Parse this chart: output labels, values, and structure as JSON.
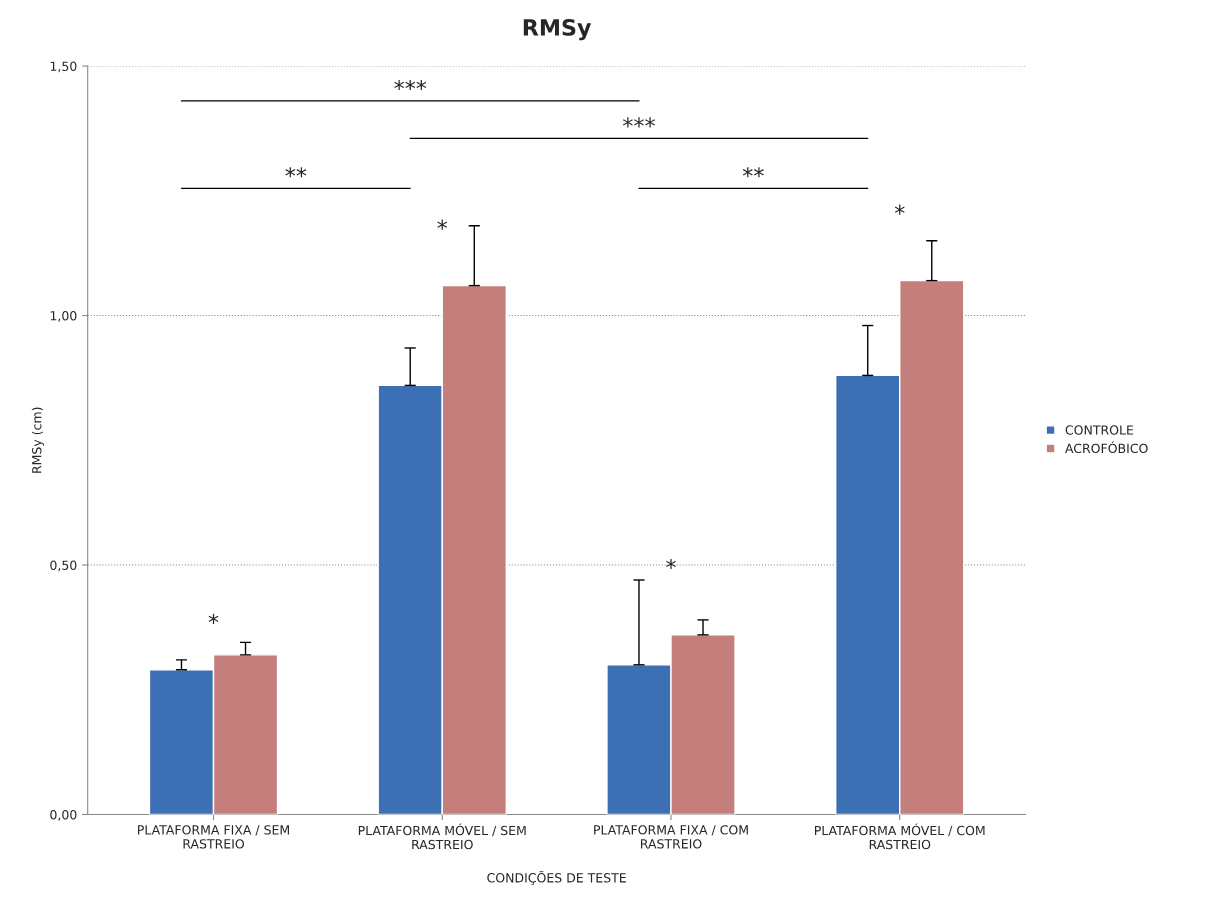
{
  "chart_data": {
    "type": "bar",
    "title": "RMSy",
    "xlabel": "CONDIÇÕES DE TESTE",
    "ylabel": "RMSy (cm)",
    "categories": [
      "PLATAFORMA FIXA / SEM\nRASTREIO",
      "PLATAFORMA MÓVEL / SEM\nRASTREIO",
      "PLATAFORMA FIXA / COM\nRASTREIO",
      "PLATAFORMA MÓVEL / COM\nRASTREIO"
    ],
    "series": [
      {
        "name": "CONTROLE",
        "color": "#3d6fb5",
        "values": [
          0.29,
          0.86,
          0.3,
          0.88
        ],
        "errors": [
          0.02,
          0.075,
          0.17,
          0.1
        ]
      },
      {
        "name": "ACROFÓBICO",
        "color": "#c47f7c",
        "values": [
          0.32,
          1.06,
          0.36,
          1.07
        ],
        "errors": [
          0.025,
          0.12,
          0.03,
          0.08
        ]
      }
    ],
    "ylim": [
      0,
      1.5
    ],
    "yticks": [
      {
        "value": 0,
        "label": "0,00"
      },
      {
        "value": 0.5,
        "label": "0,50"
      },
      {
        "value": 1,
        "label": "1,00"
      },
      {
        "value": 1.5,
        "label": "1,50"
      }
    ],
    "grid": "y",
    "legend": "right",
    "annotations": [
      "*",
      "*",
      "*",
      "*",
      "***",
      "***",
      "**",
      "**"
    ]
  }
}
